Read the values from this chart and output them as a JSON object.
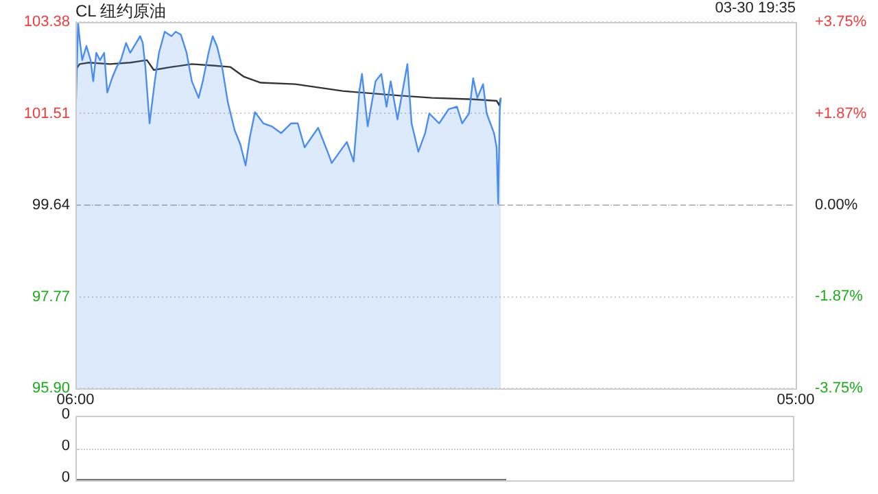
{
  "chart_data": [
    {
      "type": "area",
      "title": "CL 纽约原油",
      "annotations": [
        "03-30 19:35"
      ],
      "xlim": [
        "--03-30T06:00",
        "--03-31T05:00"
      ],
      "xticks": [
        {
          "value": "--03-30T06:00",
          "label": "06:00"
        },
        {
          "value": "--03-31T05:00",
          "label": "05:00"
        }
      ],
      "ylim": [
        95.9,
        103.38
      ],
      "yticks": [
        {
          "value": 95.9,
          "label": "95.90"
        },
        97.77,
        99.64,
        101.51,
        103.38
      ],
      "y2lim": [
        -3.75,
        3.75
      ],
      "y2ticks": [
        {
          "value": -3.75,
          "label": "-3.75%"
        },
        {
          "value": -1.87,
          "label": "-1.87%"
        },
        {
          "value": 0,
          "label": "0.00%"
        },
        {
          "value": 1.87,
          "label": "+1.87%"
        },
        {
          "value": 3.75,
          "label": "+3.75%"
        }
      ],
      "grid": "y",
      "legend": false,
      "ref_lines": [
        {
          "axis": "y",
          "value": 99.64,
          "line_style": "dashed",
          "color": "#bbbbbb"
        }
      ],
      "series": [
        {
          "color": "#4a8df0",
          "x": [
            "--03-30T06:00",
            "--03-30T06:05",
            "--03-30T06:08",
            "--03-30T06:13",
            "--03-30T06:21",
            "--03-30T06:29",
            "--03-30T06:34",
            "--03-30T06:40",
            "--03-30T06:47",
            "--03-30T06:55",
            "--03-30T07:01",
            "--03-30T07:11",
            "--03-30T07:19",
            "--03-30T07:27",
            "--03-30T07:37",
            "--03-30T07:45",
            "--03-30T08:04",
            "--03-30T08:09",
            "--03-30T08:14",
            "--03-30T08:22",
            "--03-30T08:27",
            "--03-30T08:32",
            "--03-30T08:40",
            "--03-30T08:51",
            "--03-30T09:04",
            "--03-30T09:12",
            "--03-30T09:22",
            "--03-30T09:33",
            "--03-30T09:43",
            "--03-30T09:56",
            "--03-30T10:04",
            "--03-30T10:15",
            "--03-30T10:23",
            "--03-30T10:31",
            "--03-30T10:41",
            "--03-30T10:52",
            "--03-30T11:05",
            "--03-30T11:16",
            "--03-30T11:26",
            "--03-30T11:34",
            "--03-30T11:44",
            "--03-30T12:00",
            "--03-30T12:16",
            "--03-30T12:34",
            "--03-30T12:53",
            "--03-30T13:06",
            "--03-30T13:19",
            "--03-30T13:45",
            "--03-30T14:06",
            "--03-30T14:11",
            "--03-30T14:40",
            "--03-30T14:53",
            "--03-30T15:04",
            "--03-30T15:09",
            "--03-30T15:20",
            "--03-30T15:35",
            "--03-30T15:46",
            "--03-30T15:56",
            "--03-30T16:04",
            "--03-30T16:17",
            "--03-30T16:36",
            "--03-30T16:44",
            "--03-30T16:57",
            "--03-30T17:10",
            "--03-30T17:18",
            "--03-30T17:37",
            "--03-30T17:55",
            "--03-30T18:11",
            "--03-30T18:21",
            "--03-30T18:34",
            "--03-30T18:42",
            "--03-30T18:50",
            "--03-30T19:01",
            "--03-30T19:08",
            "--03-30T19:22",
            "--03-30T19:27",
            "--03-30T19:30",
            "--03-30T19:33",
            "--03-30T19:35"
          ],
          "values": [
            101.31,
            103.38,
            103.03,
            102.6,
            102.89,
            102.6,
            102.17,
            102.75,
            102.6,
            102.75,
            101.94,
            102.26,
            102.46,
            102.6,
            102.95,
            102.75,
            103.09,
            102.95,
            102.46,
            101.31,
            101.74,
            102.17,
            102.75,
            103.18,
            103.09,
            103.18,
            103.12,
            102.75,
            102.17,
            101.83,
            102.17,
            102.75,
            103.09,
            102.89,
            102.46,
            101.74,
            101.17,
            100.88,
            100.45,
            101.02,
            101.54,
            101.31,
            101.25,
            101.11,
            101.31,
            101.31,
            100.82,
            101.22,
            100.65,
            100.5,
            100.93,
            100.53,
            101.97,
            102.32,
            101.25,
            102.17,
            102.32,
            101.65,
            102.17,
            101.39,
            102.52,
            101.31,
            100.73,
            101.11,
            101.51,
            101.31,
            101.6,
            101.65,
            101.31,
            101.51,
            102.23,
            101.83,
            102.11,
            101.51,
            101.11,
            100.82,
            99.67,
            101.6,
            101.83
          ]
        },
        {
          "type": "line",
          "color": "#333333",
          "x": [
            "--03-30T06:00",
            "--03-30T06:08",
            "--03-30T06:26",
            "--03-30T07:06",
            "--03-30T07:45",
            "--03-30T08:17",
            "--03-30T08:30",
            "--03-30T09:04",
            "--03-30T09:43",
            "--03-30T10:23",
            "--03-30T10:57",
            "--03-30T11:23",
            "--03-30T11:55",
            "--03-30T13:01",
            "--03-30T14:32",
            "--03-30T16:17",
            "--03-30T17:23",
            "--03-30T18:42",
            "--03-30T19:27",
            "--03-30T19:32",
            "--03-30T19:35"
          ],
          "values": [
            102.4,
            102.52,
            102.55,
            102.52,
            102.55,
            102.6,
            102.4,
            102.46,
            102.52,
            102.49,
            102.46,
            102.26,
            102.14,
            102.11,
            101.97,
            101.88,
            101.83,
            101.8,
            101.77,
            101.68,
            101.83
          ]
        }
      ]
    },
    {
      "type": "other",
      "annotations": [
        "0",
        "0",
        "0"
      ]
    }
  ]
}
